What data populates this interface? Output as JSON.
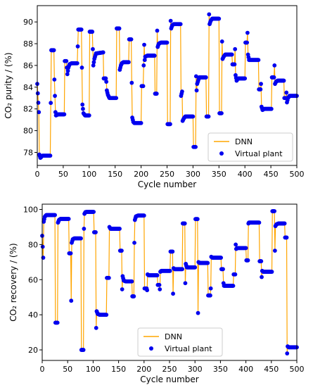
{
  "colors": {
    "dnn": "#ffa500",
    "plant": "#0000ee",
    "axis": "#000000"
  },
  "chart_data": [
    {
      "type": "line",
      "title": "",
      "xlabel": "Cycle number",
      "ylabel": "CO₂ purity / (%)",
      "xlim": [
        0,
        500
      ],
      "ylim": [
        76.8,
        91.5
      ],
      "x_ticks": [
        0,
        50,
        100,
        150,
        200,
        250,
        300,
        350,
        400,
        450,
        500
      ],
      "y_ticks": [
        78,
        80,
        82,
        84,
        86,
        88,
        90
      ],
      "legend": {
        "position": "lower-right",
        "entries": [
          "DNN",
          "Virtual plant"
        ]
      },
      "grid": false,
      "series": [
        {
          "name": "DNN",
          "style": "line",
          "color": "#ffa500"
        },
        {
          "name": "Virtual plant",
          "style": "markers",
          "color": "#0000ee"
        }
      ],
      "segments": [
        [
          0,
          84.3
        ],
        [
          3,
          81.7
        ],
        [
          4,
          77.8
        ],
        [
          6,
          77.5
        ],
        [
          10,
          77.7
        ],
        [
          25,
          77.7
        ],
        [
          27,
          87.4
        ],
        [
          32,
          87.4
        ],
        [
          33,
          84.7
        ],
        [
          35,
          81.7
        ],
        [
          36,
          81.4
        ],
        [
          40,
          81.5
        ],
        [
          52,
          81.5
        ],
        [
          53,
          86.4
        ],
        [
          56,
          86.4
        ],
        [
          58,
          85.2
        ],
        [
          60,
          85.8
        ],
        [
          62,
          86.1
        ],
        [
          66,
          86.2
        ],
        [
          77,
          86.2
        ],
        [
          79,
          89.3
        ],
        [
          85,
          89.3
        ],
        [
          86,
          85.8
        ],
        [
          87,
          82.4
        ],
        [
          89,
          81.6
        ],
        [
          92,
          81.4
        ],
        [
          100,
          81.4
        ],
        [
          101,
          89.1
        ],
        [
          106,
          89.1
        ],
        [
          107,
          87.5
        ],
        [
          108,
          86.0
        ],
        [
          110,
          86.6
        ],
        [
          113,
          87.1
        ],
        [
          127,
          87.2
        ],
        [
          128,
          84.8
        ],
        [
          132,
          84.8
        ],
        [
          133,
          84.5
        ],
        [
          134,
          83.7
        ],
        [
          136,
          83.3
        ],
        [
          139,
          83.0
        ],
        [
          152,
          83.0
        ],
        [
          153,
          89.4
        ],
        [
          158,
          89.4
        ],
        [
          159,
          85.6
        ],
        [
          161,
          86.0
        ],
        [
          163,
          86.2
        ],
        [
          166,
          86.3
        ],
        [
          176,
          86.3
        ],
        [
          177,
          88.4
        ],
        [
          181,
          88.4
        ],
        [
          182,
          84.4
        ],
        [
          183,
          81.2
        ],
        [
          185,
          80.8
        ],
        [
          187,
          80.7
        ],
        [
          200,
          80.7
        ],
        [
          201,
          84.1
        ],
        [
          204,
          84.1
        ],
        [
          206,
          87.9
        ],
        [
          207,
          86.5
        ],
        [
          208,
          86.8
        ],
        [
          212,
          86.9
        ],
        [
          226,
          86.9
        ],
        [
          227,
          83.4
        ],
        [
          230,
          83.4
        ],
        [
          231,
          89.2
        ],
        [
          232,
          87.7
        ],
        [
          234,
          88.0
        ],
        [
          238,
          88.1
        ],
        [
          250,
          88.1
        ],
        [
          251,
          80.6
        ],
        [
          256,
          80.6
        ],
        [
          257,
          90.1
        ],
        [
          258,
          89.4
        ],
        [
          260,
          89.7
        ],
        [
          263,
          89.8
        ],
        [
          276,
          89.8
        ],
        [
          277,
          83.2
        ],
        [
          279,
          83.6
        ],
        [
          280,
          80.9
        ],
        [
          282,
          81.1
        ],
        [
          285,
          81.3
        ],
        [
          300,
          81.3
        ],
        [
          301,
          78.5
        ],
        [
          305,
          78.5
        ],
        [
          306,
          85.0
        ],
        [
          307,
          83.7
        ],
        [
          308,
          84.3
        ],
        [
          310,
          84.6
        ],
        [
          312,
          84.9
        ],
        [
          325,
          84.9
        ],
        [
          326,
          81.3
        ],
        [
          330,
          81.3
        ],
        [
          331,
          90.7
        ],
        [
          332,
          89.8
        ],
        [
          334,
          90.1
        ],
        [
          337,
          90.3
        ],
        [
          350,
          90.3
        ],
        [
          351,
          81.6
        ],
        [
          355,
          81.6
        ],
        [
          356,
          88.2
        ],
        [
          357,
          86.6
        ],
        [
          359,
          86.8
        ],
        [
          362,
          87.0
        ],
        [
          375,
          87.0
        ],
        [
          376,
          86.1
        ],
        [
          380,
          86.1
        ],
        [
          381,
          87.5
        ],
        [
          382,
          85.1
        ],
        [
          384,
          84.6
        ],
        [
          387,
          84.8
        ],
        [
          400,
          84.8
        ],
        [
          401,
          88.1
        ],
        [
          404,
          88.1
        ],
        [
          405,
          89.0
        ],
        [
          406,
          87.0
        ],
        [
          408,
          86.5
        ],
        [
          412,
          86.5
        ],
        [
          426,
          86.5
        ],
        [
          427,
          83.8
        ],
        [
          430,
          83.8
        ],
        [
          431,
          84.3
        ],
        [
          432,
          82.2
        ],
        [
          434,
          81.9
        ],
        [
          437,
          82.0
        ],
        [
          451,
          82.0
        ],
        [
          452,
          84.9
        ],
        [
          456,
          84.9
        ],
        [
          457,
          86.0
        ],
        [
          458,
          84.3
        ],
        [
          460,
          84.5
        ],
        [
          463,
          84.6
        ],
        [
          475,
          84.6
        ],
        [
          476,
          83.0
        ],
        [
          479,
          83.0
        ],
        [
          480,
          83.5
        ],
        [
          481,
          82.6
        ],
        [
          483,
          83.0
        ],
        [
          486,
          83.2
        ],
        [
          500,
          83.2
        ]
      ]
    },
    {
      "type": "line",
      "title": "",
      "xlabel": "Cycle number",
      "ylabel": "CO₂ recovery / (%)",
      "xlim": [
        0,
        500
      ],
      "ylim": [
        14,
        103
      ],
      "x_ticks": [
        0,
        50,
        100,
        150,
        200,
        250,
        300,
        350,
        400,
        450,
        500
      ],
      "y_ticks": [
        20,
        40,
        60,
        80,
        100
      ],
      "legend": {
        "position": "lower-center",
        "entries": [
          "DNN",
          "Virtual plant"
        ]
      },
      "grid": false,
      "series": [
        {
          "name": "DNN",
          "style": "line",
          "color": "#ffa500"
        },
        {
          "name": "Virtual plant",
          "style": "markers",
          "color": "#0000ee"
        }
      ],
      "segments": [
        [
          0,
          85.0
        ],
        [
          2,
          72.5
        ],
        [
          3,
          93.0
        ],
        [
          5,
          95.8
        ],
        [
          8,
          96.8
        ],
        [
          25,
          96.8
        ],
        [
          26,
          35.5
        ],
        [
          30,
          35.5
        ],
        [
          31,
          92.5
        ],
        [
          33,
          94.0
        ],
        [
          36,
          94.6
        ],
        [
          52,
          94.6
        ],
        [
          53,
          75.0
        ],
        [
          56,
          75.0
        ],
        [
          57,
          48.0
        ],
        [
          58,
          81.0
        ],
        [
          60,
          83.0
        ],
        [
          63,
          83.5
        ],
        [
          76,
          83.5
        ],
        [
          77,
          20.0
        ],
        [
          81,
          20.0
        ],
        [
          82,
          89.0
        ],
        [
          83,
          97.5
        ],
        [
          85,
          98.5
        ],
        [
          88,
          98.6
        ],
        [
          101,
          98.6
        ],
        [
          102,
          87.0
        ],
        [
          105,
          87.0
        ],
        [
          106,
          32.5
        ],
        [
          107,
          42.0
        ],
        [
          109,
          40.5
        ],
        [
          113,
          40.0
        ],
        [
          126,
          40.0
        ],
        [
          127,
          61.0
        ],
        [
          131,
          61.0
        ],
        [
          132,
          90.0
        ],
        [
          134,
          89.0
        ],
        [
          138,
          89.0
        ],
        [
          152,
          89.0
        ],
        [
          153,
          76.5
        ],
        [
          156,
          76.5
        ],
        [
          157,
          54.5
        ],
        [
          158,
          62.0
        ],
        [
          160,
          59.5
        ],
        [
          164,
          59.0
        ],
        [
          176,
          59.0
        ],
        [
          177,
          50.5
        ],
        [
          180,
          50.5
        ],
        [
          181,
          81.0
        ],
        [
          182,
          94.0
        ],
        [
          184,
          96.0
        ],
        [
          188,
          96.5
        ],
        [
          200,
          96.5
        ],
        [
          201,
          55.0
        ],
        [
          205,
          55.0
        ],
        [
          206,
          54.0
        ],
        [
          207,
          63.0
        ],
        [
          209,
          62.5
        ],
        [
          213,
          62.5
        ],
        [
          226,
          62.5
        ],
        [
          227,
          57.0
        ],
        [
          230,
          57.0
        ],
        [
          231,
          54.5
        ],
        [
          232,
          64.5
        ],
        [
          234,
          65.0
        ],
        [
          238,
          65.0
        ],
        [
          251,
          65.0
        ],
        [
          252,
          76.0
        ],
        [
          256,
          76.0
        ],
        [
          257,
          52.0
        ],
        [
          258,
          66.5
        ],
        [
          260,
          66.0
        ],
        [
          264,
          66.0
        ],
        [
          275,
          66.0
        ],
        [
          276,
          92.0
        ],
        [
          280,
          92.0
        ],
        [
          281,
          58.0
        ],
        [
          282,
          69.0
        ],
        [
          284,
          67.0
        ],
        [
          288,
          67.0
        ],
        [
          300,
          67.0
        ],
        [
          301,
          94.5
        ],
        [
          305,
          94.5
        ],
        [
          306,
          41.0
        ],
        [
          307,
          70.0
        ],
        [
          309,
          69.5
        ],
        [
          313,
          69.5
        ],
        [
          325,
          69.5
        ],
        [
          326,
          51.0
        ],
        [
          330,
          51.0
        ],
        [
          331,
          55.0
        ],
        [
          332,
          73.0
        ],
        [
          334,
          72.5
        ],
        [
          338,
          72.5
        ],
        [
          351,
          72.5
        ],
        [
          352,
          66.0
        ],
        [
          355,
          66.0
        ],
        [
          356,
          58.0
        ],
        [
          357,
          56.5
        ],
        [
          359,
          56.5
        ],
        [
          363,
          56.5
        ],
        [
          375,
          56.5
        ],
        [
          376,
          63.0
        ],
        [
          379,
          63.0
        ],
        [
          380,
          80.0
        ],
        [
          381,
          77.5
        ],
        [
          383,
          78.0
        ],
        [
          387,
          78.0
        ],
        [
          400,
          78.0
        ],
        [
          401,
          71.0
        ],
        [
          404,
          71.0
        ],
        [
          405,
          92.0
        ],
        [
          406,
          92.5
        ],
        [
          408,
          92.5
        ],
        [
          412,
          92.5
        ],
        [
          426,
          92.5
        ],
        [
          427,
          70.5
        ],
        [
          430,
          70.5
        ],
        [
          431,
          61.5
        ],
        [
          432,
          65.0
        ],
        [
          434,
          64.5
        ],
        [
          438,
          64.5
        ],
        [
          451,
          64.5
        ],
        [
          452,
          99.0
        ],
        [
          456,
          99.0
        ],
        [
          457,
          76.5
        ],
        [
          458,
          90.5
        ],
        [
          460,
          91.5
        ],
        [
          464,
          92.0
        ],
        [
          476,
          92.0
        ],
        [
          477,
          84.0
        ],
        [
          480,
          84.0
        ],
        [
          481,
          18.0
        ],
        [
          482,
          22.0
        ],
        [
          484,
          21.5
        ],
        [
          488,
          21.5
        ],
        [
          500,
          21.5
        ]
      ]
    }
  ]
}
